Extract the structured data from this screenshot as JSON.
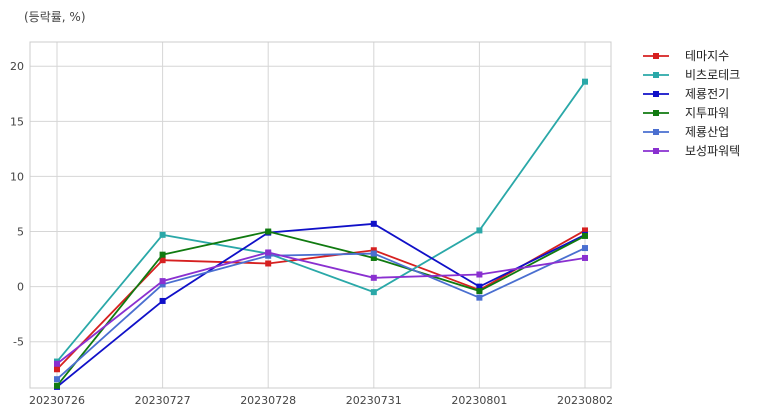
{
  "unit_label": "(등락률, %)",
  "chart_data": {
    "type": "line",
    "title": "",
    "xlabel": "",
    "ylabel": "(등락률, %)",
    "categories": [
      "20230726",
      "20230727",
      "20230728",
      "20230731",
      "20230801",
      "20230802"
    ],
    "ylim": [
      -9.2,
      22.2
    ],
    "yticks": [
      -5,
      0,
      5,
      10,
      15,
      20
    ],
    "grid": true,
    "legend_position": "right",
    "series": [
      {
        "name": "테마지수",
        "color": "#d62020",
        "values": [
          -7.5,
          2.4,
          2.1,
          3.3,
          -0.3,
          5.1
        ]
      },
      {
        "name": "비츠로테크",
        "color": "#2aa8a8",
        "values": [
          -6.8,
          4.7,
          3.0,
          -0.5,
          5.1,
          18.6
        ]
      },
      {
        "name": "제룡전기",
        "color": "#1010c8",
        "values": [
          -9.1,
          -1.3,
          4.9,
          5.7,
          0.0,
          4.7
        ]
      },
      {
        "name": "지투파워",
        "color": "#107a10",
        "values": [
          -9.0,
          2.9,
          5.0,
          2.6,
          -0.4,
          4.6
        ]
      },
      {
        "name": "제룡산업",
        "color": "#4a6fd0",
        "values": [
          -8.4,
          0.2,
          2.8,
          3.0,
          -1.0,
          3.5
        ]
      },
      {
        "name": "보성파워텍",
        "color": "#8a30d0",
        "values": [
          -7.0,
          0.5,
          3.1,
          0.8,
          1.1,
          2.6
        ]
      }
    ]
  }
}
